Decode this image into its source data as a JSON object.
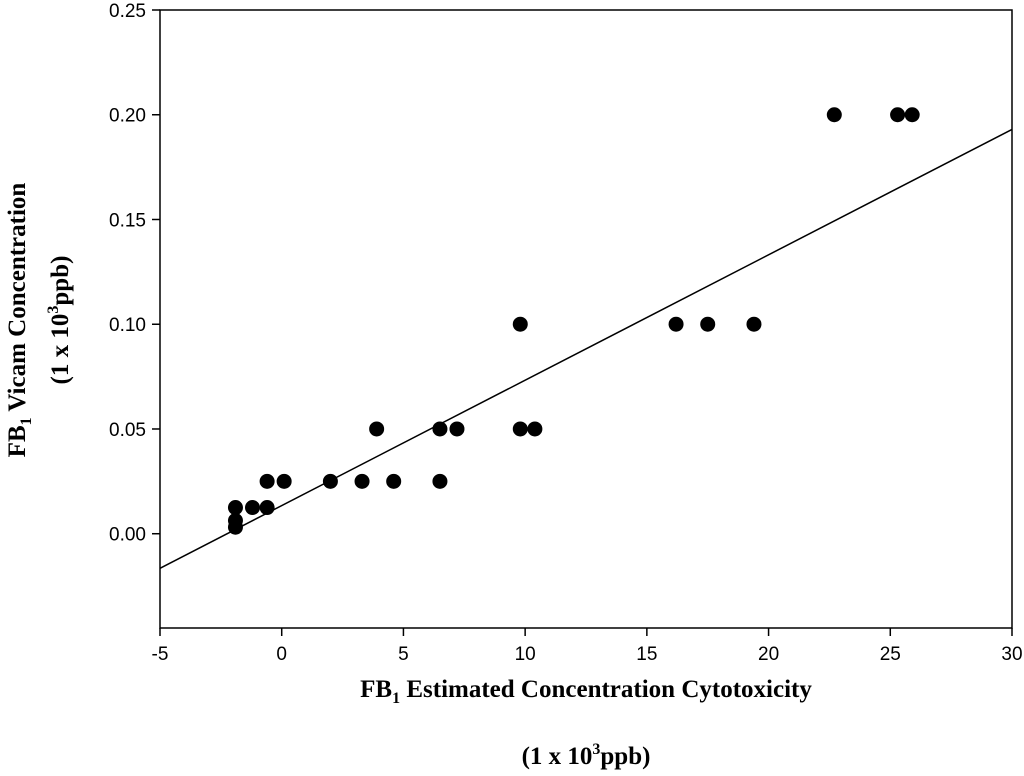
{
  "chart_data": {
    "type": "scatter",
    "title": "",
    "xlabel": {
      "line1": {
        "prefix": "FB",
        "sub": "1",
        "rest": " Estimated Concentration Cytotoxicity"
      },
      "line2": {
        "prefix": "(1 x 10",
        "sup": "3",
        "rest": "ppb)"
      }
    },
    "ylabel": {
      "line1": {
        "prefix": "FB",
        "sub": "1",
        "rest": " Vicam Concentration"
      },
      "line2": {
        "prefix": "(1 x 10",
        "sup": "3",
        "rest": "ppb)"
      }
    },
    "xlim": [
      -5,
      30
    ],
    "ylim": [
      -0.045,
      0.25
    ],
    "xticks": [
      -5,
      0,
      5,
      10,
      15,
      20,
      25,
      30
    ],
    "xtick_labels": [
      "-5",
      "0",
      "5",
      "10",
      "15",
      "20",
      "25",
      "30"
    ],
    "yticks": [
      0.0,
      0.05,
      0.1,
      0.15,
      0.2,
      0.25
    ],
    "ytick_labels": [
      "0.00",
      "0.05",
      "0.10",
      "0.15",
      "0.20",
      "0.25"
    ],
    "grid": false,
    "legend": "none",
    "marker_color": "#000000",
    "points": [
      {
        "x": -1.9,
        "y": 0.0125
      },
      {
        "x": -1.9,
        "y": 0.0063
      },
      {
        "x": -1.9,
        "y": 0.0031
      },
      {
        "x": -1.2,
        "y": 0.0125
      },
      {
        "x": -0.6,
        "y": 0.0125
      },
      {
        "x": -0.6,
        "y": 0.025
      },
      {
        "x": 0.1,
        "y": 0.025
      },
      {
        "x": 2.0,
        "y": 0.025
      },
      {
        "x": 3.3,
        "y": 0.025
      },
      {
        "x": 4.6,
        "y": 0.025
      },
      {
        "x": 3.9,
        "y": 0.05
      },
      {
        "x": 6.5,
        "y": 0.05
      },
      {
        "x": 7.2,
        "y": 0.05
      },
      {
        "x": 6.5,
        "y": 0.025
      },
      {
        "x": 9.8,
        "y": 0.1
      },
      {
        "x": 9.8,
        "y": 0.05
      },
      {
        "x": 10.4,
        "y": 0.05
      },
      {
        "x": 16.2,
        "y": 0.1
      },
      {
        "x": 17.5,
        "y": 0.1
      },
      {
        "x": 19.4,
        "y": 0.1
      },
      {
        "x": 22.7,
        "y": 0.2
      },
      {
        "x": 25.3,
        "y": 0.2
      },
      {
        "x": 25.9,
        "y": 0.2
      }
    ],
    "fit_line": {
      "x1": -5,
      "y1": -0.0165,
      "x2": 30,
      "y2": 0.193
    }
  }
}
